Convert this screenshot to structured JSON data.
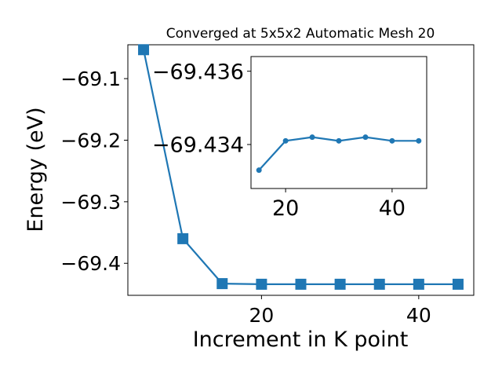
{
  "chart_data": [
    {
      "type": "line",
      "title": "Converged at 5x5x2 Automatic Mesh 20",
      "xlabel": "Increment in K point",
      "ylabel": "Energy (eV)",
      "xlim": [
        3,
        47
      ],
      "ylim": [
        -69.452,
        -69.045
      ],
      "x_ticks": [
        20,
        40
      ],
      "y_ticks": [
        -69.1,
        -69.2,
        -69.3,
        -69.4
      ],
      "x_tick_labels": [
        "20",
        "40"
      ],
      "y_tick_labels": [
        "−69.1",
        "−69.2",
        "−69.3",
        "−69.4"
      ],
      "marker": "square",
      "color": "#1f77b4",
      "grid": false,
      "series": [
        {
          "x": [
            5,
            10,
            15,
            20,
            25,
            30,
            35,
            40,
            45
          ],
          "y": [
            -69.053,
            -69.36,
            -69.433,
            -69.434,
            -69.434,
            -69.434,
            -69.434,
            -69.434,
            -69.434
          ]
        }
      ]
    },
    {
      "type": "line",
      "title": "",
      "xlabel": "",
      "ylabel": "",
      "xlim": [
        13.5,
        46.5
      ],
      "ylim": [
        -69.4328,
        -69.4364
      ],
      "x_ticks": [
        20,
        40
      ],
      "y_ticks": [
        -69.436,
        -69.434
      ],
      "x_tick_labels": [
        "20",
        "40"
      ],
      "y_tick_labels": [
        "−69.436",
        "−69.434"
      ],
      "marker": "circle",
      "color": "#1f77b4",
      "grid": false,
      "series": [
        {
          "x": [
            15,
            20,
            25,
            30,
            35,
            40,
            45
          ],
          "y": [
            -69.4333,
            -69.4341,
            -69.4342,
            -69.4341,
            -69.4342,
            -69.4341,
            -69.4341
          ]
        }
      ]
    }
  ]
}
